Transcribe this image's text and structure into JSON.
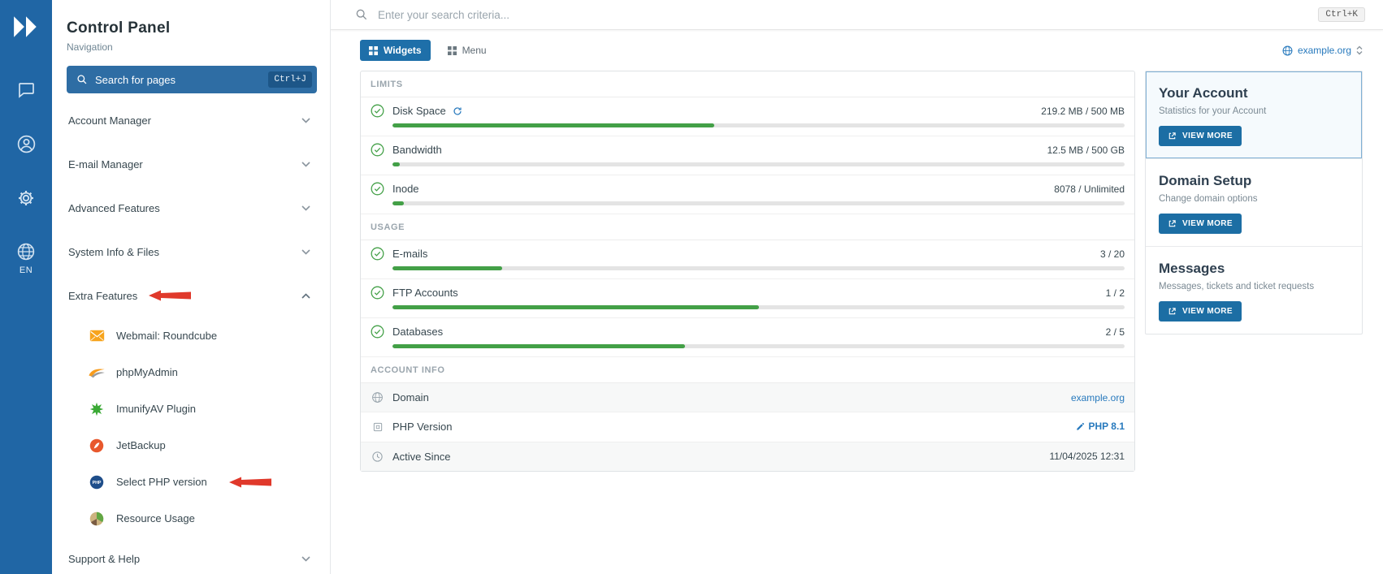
{
  "colors": {
    "primary": "#1e6fa9",
    "rail": "#2066a5",
    "progress_green": "#43a047",
    "link_blue": "#2779bd",
    "annotation_red": "#e0392b"
  },
  "icons": {
    "logo": "double-chevron-right",
    "rail": [
      "chat-bubble",
      "user-account",
      "gear-settings",
      "globe-language"
    ],
    "nav_chevron": "chevron-down",
    "search": "magnifier",
    "status": "check-circle"
  },
  "rail": {
    "lang": "EN"
  },
  "sidebar": {
    "title": "Control Panel",
    "subtitle": "Navigation",
    "search": {
      "label": "Search for pages",
      "shortcut": "Ctrl+J"
    },
    "items": [
      {
        "label": "Account Manager"
      },
      {
        "label": "E-mail Manager"
      },
      {
        "label": "Advanced Features"
      },
      {
        "label": "System Info & Files"
      },
      {
        "label": "Extra Features"
      },
      {
        "label": "Support & Help"
      }
    ],
    "extra_children": [
      {
        "label": "Webmail: Roundcube"
      },
      {
        "label": "phpMyAdmin"
      },
      {
        "label": "ImunifyAV Plugin"
      },
      {
        "label": "JetBackup"
      },
      {
        "label": "Select PHP version"
      },
      {
        "label": "Resource Usage"
      }
    ]
  },
  "topbar": {
    "search_placeholder": "Enter your search criteria...",
    "shortcut": "Ctrl+K"
  },
  "tabs": {
    "widgets": "Widgets",
    "menu": "Menu"
  },
  "domain_selector": {
    "value": "example.org"
  },
  "dashboard": {
    "limits": {
      "title": "LIMITS",
      "rows": [
        {
          "label": "Disk Space",
          "value": "219.2 MB / 500 MB",
          "percent": 44
        },
        {
          "label": "Bandwidth",
          "value": "12.5 MB / 500 GB",
          "percent": 1
        },
        {
          "label": "Inode",
          "value": "8078 / Unlimited",
          "percent": 1.5
        }
      ]
    },
    "usage": {
      "title": "USAGE",
      "rows": [
        {
          "label": "E-mails",
          "value": "3 / 20",
          "percent": 15
        },
        {
          "label": "FTP Accounts",
          "value": "1 / 2",
          "percent": 50
        },
        {
          "label": "Databases",
          "value": "2 / 5",
          "percent": 40
        }
      ]
    },
    "account": {
      "title": "ACCOUNT INFO",
      "rows": [
        {
          "label": "Domain",
          "value": "example.org"
        },
        {
          "label": "PHP Version",
          "value": "PHP 8.1"
        },
        {
          "label": "Active Since",
          "value": "11/04/2025 12:31"
        }
      ]
    }
  },
  "widgets": [
    {
      "title": "Your Account",
      "subtitle": "Statistics for your Account",
      "button": "VIEW MORE"
    },
    {
      "title": "Domain Setup",
      "subtitle": "Change domain options",
      "button": "VIEW MORE"
    },
    {
      "title": "Messages",
      "subtitle": "Messages, tickets and ticket requests",
      "button": "VIEW MORE"
    }
  ]
}
